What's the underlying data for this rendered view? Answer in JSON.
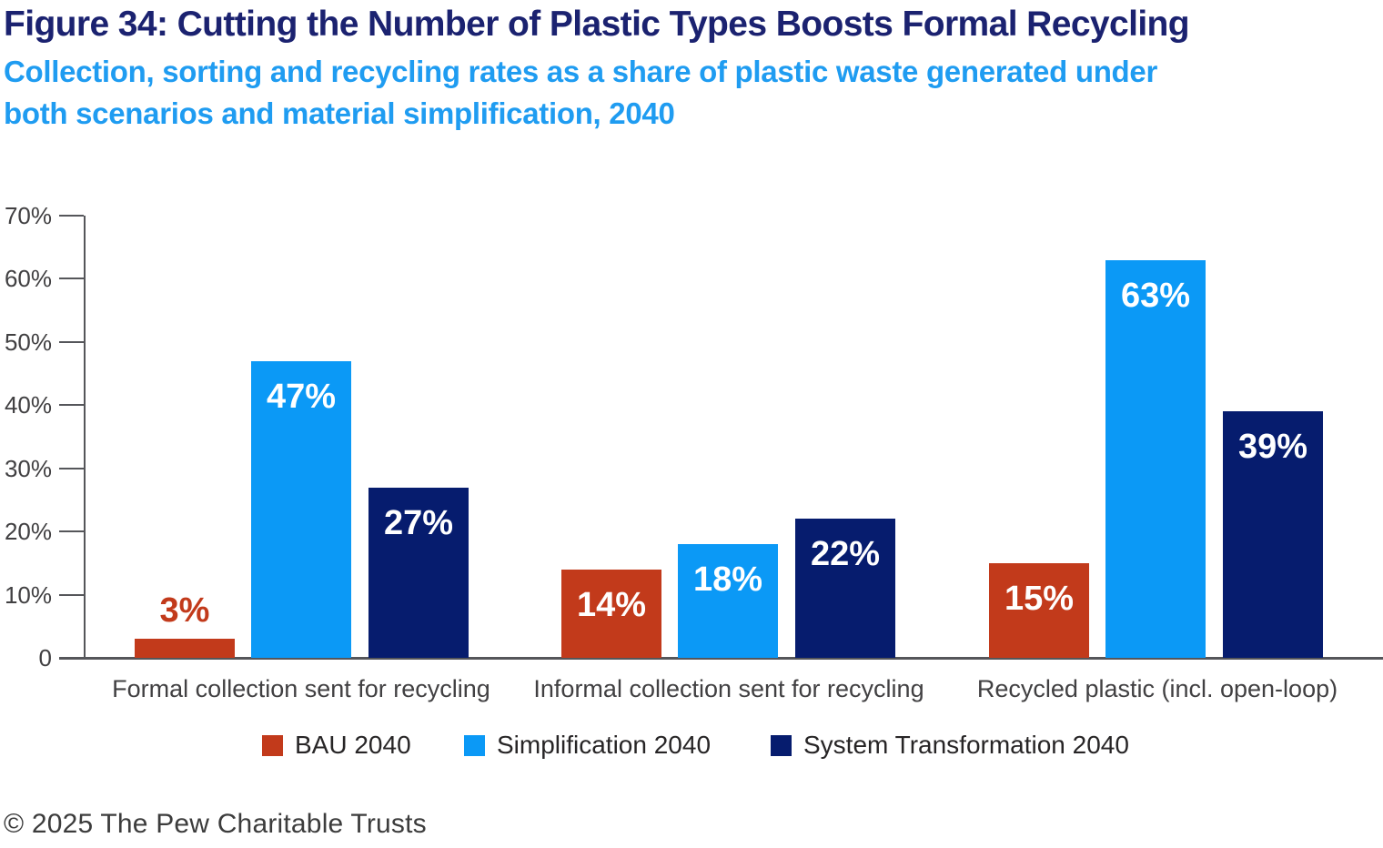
{
  "header": {
    "title": "Figure 34: Cutting the Number of Plastic Types Boosts Formal Recycling",
    "subtitle_lines": [
      "Collection, sorting and recycling rates as a share of plastic waste generated under",
      "both scenarios and material simplification, 2040"
    ]
  },
  "colors": {
    "bau": "#C23A1B",
    "simplification": "#0B99F6",
    "system_transformation": "#061C6E",
    "title_text": "#1B2270",
    "subtitle_text": "#1F9CF1",
    "axis": "#55565A",
    "tick_text": "#414042"
  },
  "chart_data": {
    "type": "bar",
    "categories": [
      "Formal collection sent for recycling",
      "Informal collection sent for recycling",
      "Recycled plastic (incl. open-loop)"
    ],
    "series": [
      {
        "name": "BAU 2040",
        "color": "#C23A1B",
        "values": [
          3,
          14,
          15
        ]
      },
      {
        "name": "Simplification 2040",
        "color": "#0B99F6",
        "values": [
          47,
          18,
          63
        ]
      },
      {
        "name": "System Transformation 2040",
        "color": "#061C6E",
        "values": [
          27,
          22,
          39
        ]
      }
    ],
    "value_suffix": "%",
    "y_tick_labels": [
      "70%",
      "60%",
      "50%",
      "40%",
      "30%",
      "20%",
      "10%",
      "0"
    ],
    "ylim": [
      0,
      70
    ],
    "grid": false,
    "legend_position": "bottom"
  },
  "footer": {
    "copyright": "© 2025 The Pew Charitable Trusts"
  }
}
